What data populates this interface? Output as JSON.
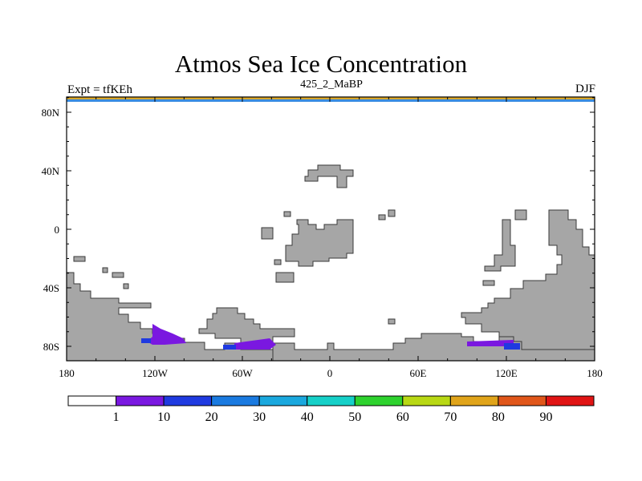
{
  "map": {
    "title": "Atmos Sea Ice Concentration",
    "left_label": "Expt = tfKEh",
    "center_label": "425_2_MaBP",
    "right_label": "DJF",
    "x_ticks": [
      "180",
      "120W",
      "60W",
      "0",
      "60E",
      "120E",
      "180"
    ],
    "y_ticks": [
      "80N",
      "40N",
      "0",
      "40S",
      "80S"
    ],
    "land_color": "#a6a6a6",
    "border_color": "#3a3a3a"
  },
  "colorbar": {
    "colors": [
      "#ffffff",
      "#7a18e0",
      "#1f3ae0",
      "#1a7ae0",
      "#1aa8de",
      "#16d0c8",
      "#2ed22e",
      "#b8d814",
      "#e0a41a",
      "#e0561a",
      "#e01414"
    ],
    "labels": [
      "1",
      "10",
      "20",
      "30",
      "40",
      "50",
      "60",
      "70",
      "80",
      "90"
    ]
  }
}
